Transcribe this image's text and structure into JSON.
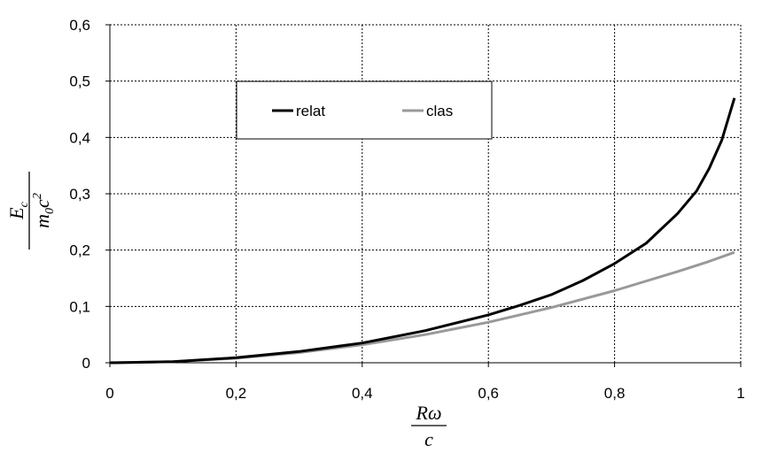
{
  "chart_data": {
    "type": "line",
    "title": "",
    "xlim": [
      0,
      1
    ],
    "ylim": [
      0,
      0.6
    ],
    "x_ticks": [
      "0",
      "0,2",
      "0,4",
      "0,6",
      "0,8",
      "1"
    ],
    "y_ticks": [
      "0",
      "0,1",
      "0,2",
      "0,3",
      "0,4",
      "0,5",
      "0,6"
    ],
    "x_tick_values": [
      0,
      0.2,
      0.4,
      0.6,
      0.8,
      1.0
    ],
    "y_tick_values": [
      0,
      0.1,
      0.2,
      0.3,
      0.4,
      0.5,
      0.6
    ],
    "xlabel": {
      "numerator": "Rω",
      "denominator": "c"
    },
    "ylabel": {
      "numerator": "E",
      "numerator_sub": "c",
      "denominator_pre": "m",
      "denominator_sub": "0",
      "denominator_post": "c",
      "denominator_sup": "2"
    },
    "grid": true,
    "legend_position": "top-left inside",
    "series": [
      {
        "name": "relat",
        "color": "#000000",
        "x": [
          0,
          0.1,
          0.2,
          0.3,
          0.4,
          0.5,
          0.6,
          0.65,
          0.7,
          0.75,
          0.8,
          0.85,
          0.9,
          0.93,
          0.95,
          0.97,
          0.99
        ],
        "y": [
          0,
          0.002,
          0.009,
          0.02,
          0.035,
          0.057,
          0.085,
          0.102,
          0.121,
          0.146,
          0.176,
          0.212,
          0.265,
          0.305,
          0.345,
          0.395,
          0.47
        ]
      },
      {
        "name": "clas",
        "color": "#999999",
        "x": [
          0,
          0.1,
          0.2,
          0.3,
          0.4,
          0.5,
          0.6,
          0.7,
          0.8,
          0.9,
          0.95,
          0.99
        ],
        "y": [
          0,
          0.002,
          0.008,
          0.018,
          0.032,
          0.05,
          0.072,
          0.098,
          0.128,
          0.162,
          0.18,
          0.196
        ]
      }
    ]
  }
}
